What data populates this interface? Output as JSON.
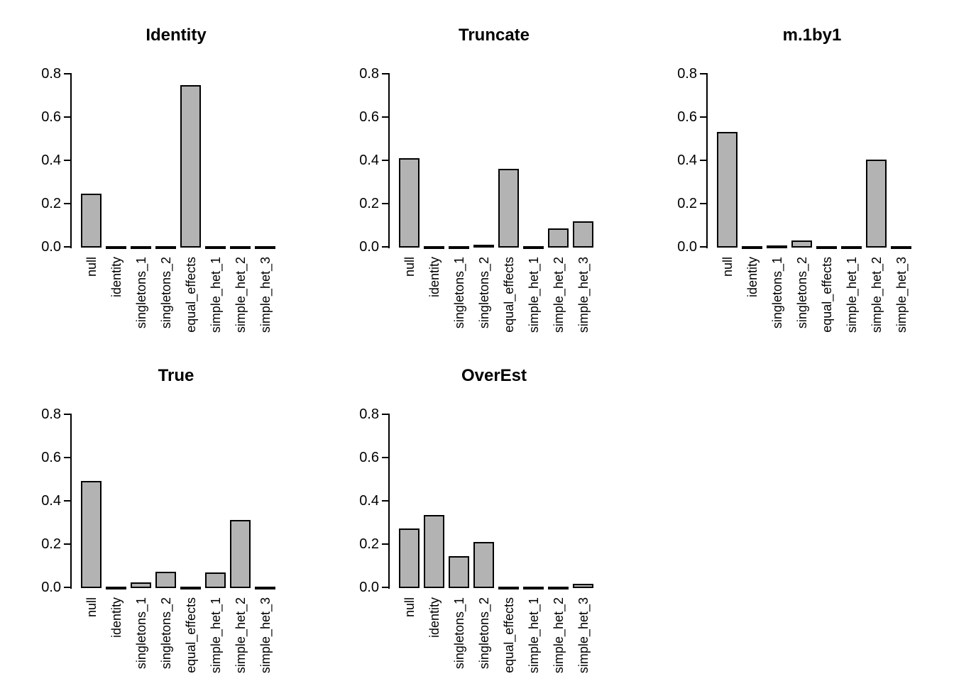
{
  "figure": {
    "background": "#ffffff",
    "layout": "3 columns x 2 rows, last cell empty",
    "grid": false,
    "legend": "none"
  },
  "style": {
    "bar_fill": "#b3b3b3",
    "bar_border": "#000000",
    "axis_color": "#000000",
    "title_color": "#000000"
  },
  "chart_data": [
    {
      "type": "bar",
      "title": "Identity",
      "categories": [
        "null",
        "identity",
        "singletons_1",
        "singletons_2",
        "equal_effects",
        "simple_het_1",
        "simple_het_2",
        "simple_het_3"
      ],
      "values": [
        0.25,
        0.001,
        0.001,
        0.003,
        0.75,
        0.001,
        0.001,
        0.001
      ],
      "xlabel": "",
      "ylabel": "",
      "ylim": [
        0,
        0.8
      ],
      "yticks": [
        "0.0",
        "0.2",
        "0.4",
        "0.6",
        "0.8"
      ]
    },
    {
      "type": "bar",
      "title": "Truncate",
      "categories": [
        "null",
        "identity",
        "singletons_1",
        "singletons_2",
        "equal_effects",
        "simple_het_1",
        "simple_het_2",
        "simple_het_3"
      ],
      "values": [
        0.412,
        0.001,
        0.005,
        0.012,
        0.365,
        0.001,
        0.087,
        0.12
      ],
      "xlabel": "",
      "ylabel": "",
      "ylim": [
        0,
        0.8
      ],
      "yticks": [
        "0.0",
        "0.2",
        "0.4",
        "0.6",
        "0.8"
      ]
    },
    {
      "type": "bar",
      "title": "m.1by1",
      "categories": [
        "null",
        "identity",
        "singletons_1",
        "singletons_2",
        "equal_effects",
        "simple_het_1",
        "simple_het_2",
        "simple_het_3"
      ],
      "values": [
        0.536,
        0.004,
        0.01,
        0.033,
        0.003,
        0.001,
        0.407,
        0.008
      ],
      "xlabel": "",
      "ylabel": "",
      "ylim": [
        0,
        0.8
      ],
      "yticks": [
        "0.0",
        "0.2",
        "0.4",
        "0.6",
        "0.8"
      ]
    },
    {
      "type": "bar",
      "title": "True",
      "categories": [
        "null",
        "identity",
        "singletons_1",
        "singletons_2",
        "equal_effects",
        "simple_het_1",
        "simple_het_2",
        "simple_het_3"
      ],
      "values": [
        0.494,
        0.005,
        0.027,
        0.077,
        0.002,
        0.073,
        0.315,
        0.004
      ],
      "xlabel": "",
      "ylabel": "",
      "ylim": [
        0,
        0.8
      ],
      "yticks": [
        "0.0",
        "0.2",
        "0.4",
        "0.6",
        "0.8"
      ]
    },
    {
      "type": "bar",
      "title": "OverEst",
      "categories": [
        "null",
        "identity",
        "singletons_1",
        "singletons_2",
        "equal_effects",
        "simple_het_1",
        "simple_het_2",
        "simple_het_3"
      ],
      "values": [
        0.275,
        0.337,
        0.148,
        0.212,
        0.001,
        0.001,
        0.001,
        0.02
      ],
      "xlabel": "",
      "ylabel": "",
      "ylim": [
        0,
        0.8
      ],
      "yticks": [
        "0.0",
        "0.2",
        "0.4",
        "0.6",
        "0.8"
      ]
    }
  ]
}
